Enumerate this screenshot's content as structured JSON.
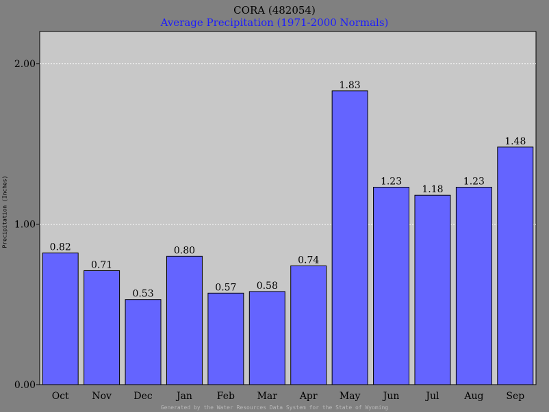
{
  "title": "CORA (482054)",
  "subtitle": "Average Precipitation (1971-2000 Normals)",
  "footer": "Generated by the Water Resources Data System for the State of Wyoming",
  "colors": {
    "background": "#808080",
    "plot": "#c8c8c8",
    "bar": "#6464ff",
    "subtitle": "#1c1cff",
    "grid": "#ffffff"
  },
  "chart_data": {
    "type": "bar",
    "title": "CORA (482054)",
    "subtitle": "Average Precipitation (1971-2000 Normals)",
    "xlabel": "",
    "ylabel": "Precipitation (Inches)",
    "ylim": [
      0,
      2.2
    ],
    "yticks": [
      "0.00",
      "1.00",
      "2.00"
    ],
    "grid": true,
    "categories": [
      "Oct",
      "Nov",
      "Dec",
      "Jan",
      "Feb",
      "Mar",
      "Apr",
      "May",
      "Jun",
      "Jul",
      "Aug",
      "Sep"
    ],
    "values": [
      0.82,
      0.71,
      0.53,
      0.8,
      0.57,
      0.58,
      0.74,
      1.83,
      1.23,
      1.18,
      1.23,
      1.48
    ],
    "value_labels": [
      "0.82",
      "0.71",
      "0.53",
      "0.80",
      "0.57",
      "0.58",
      "0.74",
      "1.83",
      "1.23",
      "1.18",
      "1.23",
      "1.48"
    ]
  }
}
